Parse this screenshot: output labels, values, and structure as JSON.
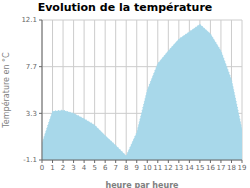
{
  "chart_data": {
    "type": "area",
    "title": "Evolution de la température",
    "x_label": "heure par heure",
    "y_label": "Température en °C",
    "x": [
      0,
      1,
      2,
      3,
      4,
      5,
      6,
      7,
      8,
      9,
      10,
      11,
      12,
      13,
      14,
      15,
      16,
      17,
      18,
      19
    ],
    "values": [
      0.5,
      3.5,
      3.6,
      3.3,
      2.8,
      2.2,
      1.2,
      0.3,
      -0.7,
      1.5,
      5.5,
      8.0,
      9.2,
      10.3,
      11.0,
      11.7,
      10.8,
      9.2,
      6.5,
      1.8
    ],
    "xlim": [
      0,
      19
    ],
    "xticks": [
      0,
      1,
      2,
      3,
      4,
      5,
      6,
      7,
      8,
      9,
      10,
      11,
      12,
      13,
      14,
      15,
      16,
      17,
      18,
      19
    ],
    "ylim": [
      -1.1,
      12.1
    ],
    "yticks": [
      -1.1,
      3.3,
      7.7,
      12.1
    ],
    "color": "#a8d8ea",
    "line_style": "dotted",
    "grid": true
  }
}
